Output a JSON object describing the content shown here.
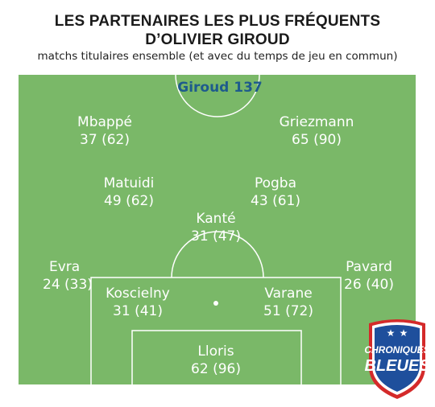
{
  "title_line1": "LES PARTENAIRES LES PLUS FRÉQUENTS",
  "title_line2": "D’OLIVIER GIROUD",
  "subtitle": "matchs titulaires ensemble (et avec du temps de jeu en commun)",
  "center_player": "Giroud 137",
  "players": [
    {
      "name": "Mbappé",
      "stat": "37 (62)"
    },
    {
      "name": "Griezmann",
      "stat": "65 (90)"
    },
    {
      "name": "Matuidi",
      "stat": "49 (62)"
    },
    {
      "name": "Pogba",
      "stat": "43 (61)"
    },
    {
      "name": "Kanté",
      "stat": "31 (47)"
    },
    {
      "name": "Evra",
      "stat": "24 (33)"
    },
    {
      "name": "Pavard",
      "stat": "26 (40)"
    },
    {
      "name": "Koscielny",
      "stat": "31 (41)"
    },
    {
      "name": "Varane",
      "stat": "51 (72)"
    },
    {
      "name": "Lloris",
      "stat": "62 (96)"
    }
  ],
  "logo": {
    "line1": "CHRONIQUES",
    "line2": "BLEUES"
  },
  "colors": {
    "pitch": "#7ab868",
    "lines": "#ffffff",
    "giroud_text": "#1e5b8c",
    "badge_blue": "#1e4f9c",
    "badge_red": "#d42a2a"
  }
}
